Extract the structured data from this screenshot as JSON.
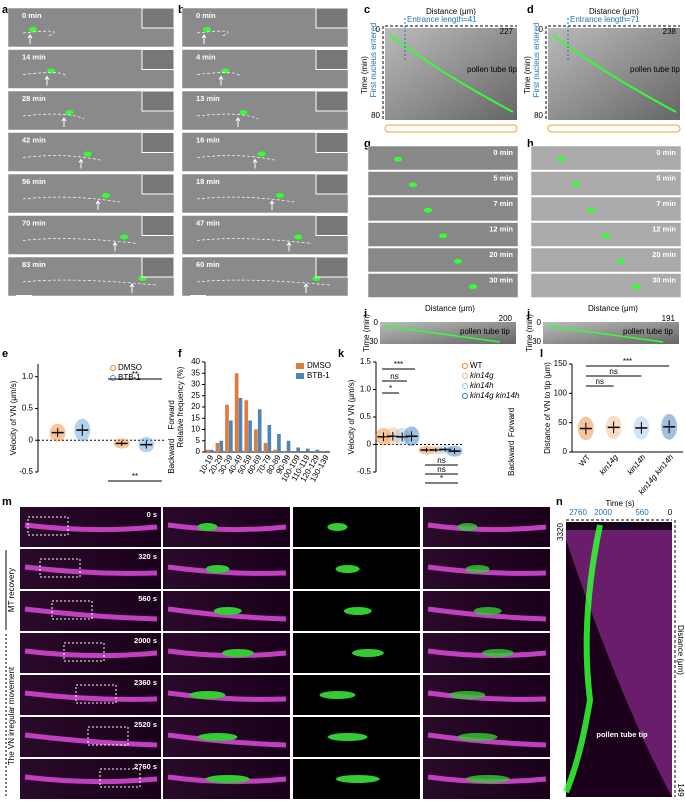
{
  "panel_labels": [
    "a",
    "b",
    "c",
    "d",
    "e",
    "f",
    "g",
    "h",
    "i",
    "j",
    "k",
    "l",
    "m",
    "n"
  ],
  "a": {
    "times": [
      "0 min",
      "14 min",
      "28 min",
      "42 min",
      "56 min",
      "70 min",
      "83 min"
    ]
  },
  "b": {
    "times": [
      "0 min",
      "4 min",
      "13 min",
      "16 min",
      "18 min",
      "47 min",
      "60 min"
    ]
  },
  "c": {
    "x_label": "Distance (μm)",
    "entrance": "Entrance length=41",
    "x_end": 227,
    "y_label": "Time (min)",
    "nucleus": "First nucleus entered",
    "y_start": 0,
    "y_end": 80,
    "tip": "pollen tube tip"
  },
  "d": {
    "x_label": "Distance (μm)",
    "entrance": "Entrance length=71",
    "x_end": 238,
    "y_label": "Time (min)",
    "nucleus": "First nucleus entered",
    "y_start": 0,
    "y_end": 80,
    "tip": "pollen tube tip"
  },
  "g": {
    "times": [
      "0 min",
      "5 min",
      "7 min",
      "12 min",
      "20 min",
      "30 min"
    ]
  },
  "h": {
    "times": [
      "0 min",
      "5 min",
      "7 min",
      "12 min",
      "20 min",
      "30 min"
    ]
  },
  "i": {
    "x_label": "Distance (μm)",
    "x_end": 200,
    "y_label": "Time (min)",
    "y_start": 0,
    "y_end": 30,
    "tip": "pollen tube tip"
  },
  "j": {
    "x_label": "Distance (μm)",
    "x_end": 191,
    "y_label": "Time (min)",
    "y_start": 0,
    "y_end": 30,
    "tip": "pollen tube tip"
  },
  "e": {
    "type": "dot",
    "y_label": "Velocity of VN (μm/s)",
    "ylim": [
      -0.5,
      1.2
    ],
    "yticks": [
      -0.5,
      0,
      0.5,
      {
        "value": 1,
        "label": "1.0"
      }
    ],
    "categories": [
      "Forward",
      "Backward"
    ],
    "series": [
      {
        "name": "DMSO",
        "color": "#f07f1e",
        "values": [
          0.12,
          -0.05
        ],
        "sd": [
          0.07,
          0.04
        ]
      },
      {
        "name": "BTB-1",
        "color": "#5b9bd5",
        "values": [
          0.16,
          -0.07
        ],
        "sd": [
          0.09,
          0.06
        ]
      }
    ],
    "significance": [
      "**",
      "**"
    ]
  },
  "f": {
    "type": "bar",
    "y_label": "Relative frequency (%)",
    "ylim": [
      0,
      40
    ],
    "yticks": [
      0,
      5,
      10,
      15,
      20,
      25,
      30,
      35,
      40
    ],
    "categories": [
      "10-19",
      "20-29",
      "30-39",
      "40-49",
      "50-59",
      "60-69",
      "70-79",
      "80-89",
      "90-99",
      "100-109",
      "110-119",
      "120-129",
      "130-139"
    ],
    "series": [
      {
        "name": "DMSO",
        "color": "#e07b39",
        "values": [
          1,
          4,
          21,
          35,
          23,
          10,
          4,
          1,
          0.5,
          0,
          0,
          0,
          0
        ]
      },
      {
        "name": "BTB-1",
        "color": "#4f86b8",
        "values": [
          1,
          5,
          14,
          24,
          14,
          19,
          12,
          8,
          5,
          2,
          1.5,
          1,
          0.5
        ]
      }
    ]
  },
  "k": {
    "type": "dot",
    "y_label": "Velocity of VN (μm/s)",
    "ylim": [
      -0.5,
      1.5
    ],
    "yticks": [
      -0.5,
      0,
      0.5,
      {
        "value": 1,
        "label": "1.0"
      },
      {
        "value": 1.5,
        "label": "1.5"
      }
    ],
    "categories": [
      "Forward",
      "Backward"
    ],
    "series": [
      {
        "name": "WT",
        "color": "#f07f1e",
        "values": [
          0.14,
          -0.1
        ],
        "sd": [
          0.08,
          0.04
        ]
      },
      {
        "name": "kin14g",
        "color": "#f4b183",
        "values": [
          0.15,
          -0.1
        ],
        "sd": [
          0.08,
          0.04
        ]
      },
      {
        "name": "kin14h",
        "color": "#9dc3e6",
        "values": [
          0.14,
          -0.09
        ],
        "sd": [
          0.08,
          0.04
        ]
      },
      {
        "name": "kin14g kin14h",
        "color": "#2e75b6",
        "values": [
          0.15,
          -0.12
        ],
        "sd": [
          0.09,
          0.05
        ]
      }
    ],
    "significance": [
      "***",
      "ns",
      "*",
      "ns",
      "ns",
      "*"
    ]
  },
  "l": {
    "type": "dot",
    "y_label": "Distance of VN to tip (μm)",
    "ylim": [
      0,
      150
    ],
    "yticks": [
      0,
      50,
      100,
      150
    ],
    "categories": [
      "WT",
      "kin14g",
      "kin14h",
      "kin14g kin14h"
    ],
    "colors": [
      "#f07f1e",
      "#f4b183",
      "#9dc3e6",
      "#2e75b6"
    ],
    "values": [
      40,
      42,
      41,
      43
    ],
    "sd": [
      10,
      10,
      10,
      11
    ],
    "significance": [
      "***",
      "ns",
      "ns"
    ]
  },
  "m": {
    "times": [
      "0 s",
      "320 s",
      "560 s",
      "2000 s",
      "2360 s",
      "2520 s",
      "2760 s"
    ],
    "mt_recovery": "MT recovery",
    "irregular": "The VN irregular movement"
  },
  "n": {
    "x_label": "Time (s)",
    "times": [
      2760,
      2000,
      560,
      0
    ],
    "t_end": 3320,
    "y_label": "Distance (μm)",
    "y_end": 149,
    "tip": "pollen tube tip"
  }
}
